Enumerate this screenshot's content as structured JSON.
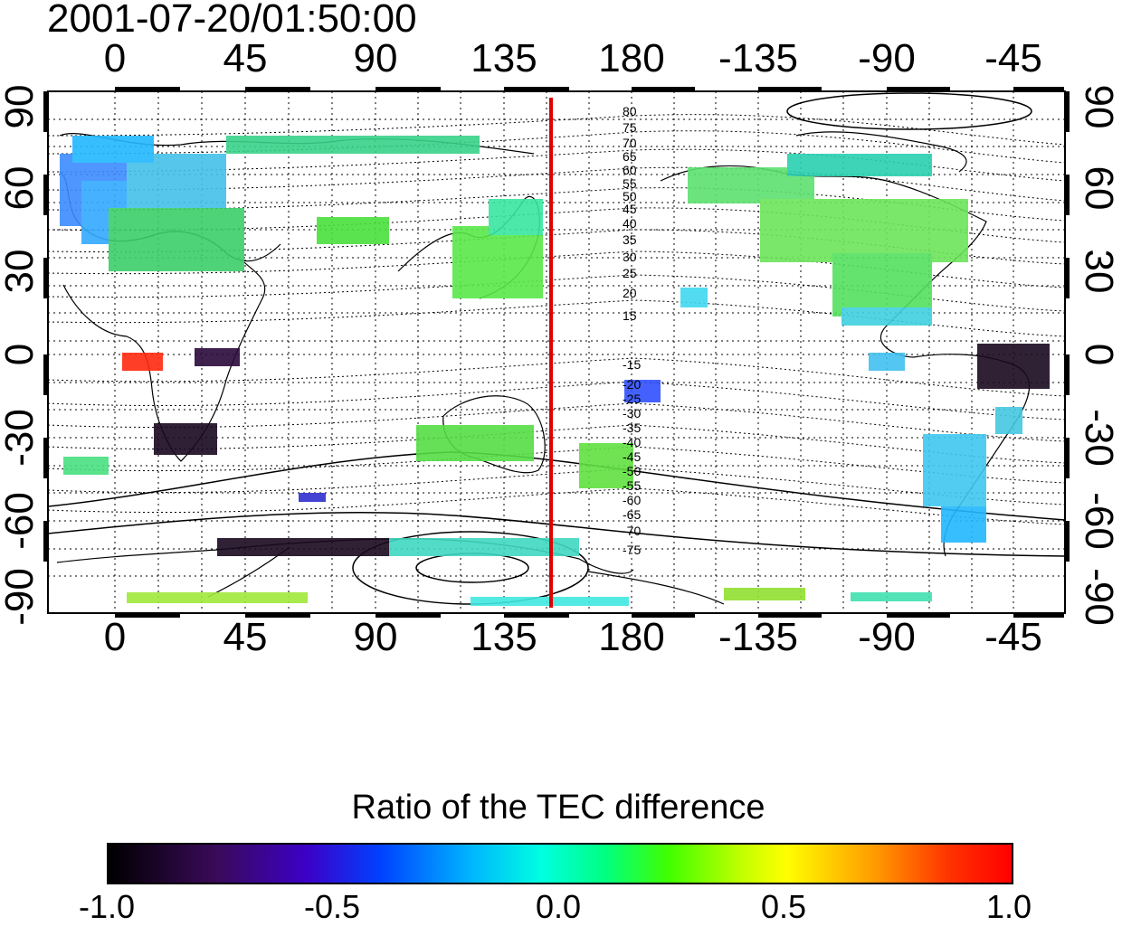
{
  "title": "2001-07-20/01:50:00",
  "x_ticks_top": [
    "0",
    "45",
    "90",
    "135",
    "180",
    "-135",
    "-90",
    "-45"
  ],
  "x_ticks_bottom": [
    "0",
    "45",
    "90",
    "135",
    "180",
    "-135",
    "-90",
    "-45"
  ],
  "y_ticks_left": [
    "90",
    "60",
    "30",
    "0",
    "-30",
    "-60",
    "-90"
  ],
  "y_ticks_right": [
    "90",
    "60",
    "30",
    "0",
    "-30",
    "-60",
    "-90"
  ],
  "contour_labels_north": [
    "80",
    "75",
    "70",
    "65",
    "60",
    "55",
    "50",
    "45",
    "40",
    "35",
    "30",
    "25",
    "20",
    "15"
  ],
  "contour_labels_south": [
    "-15",
    "-20",
    "-25",
    "-30",
    "-35",
    "-40",
    "-45",
    "-50",
    "-55",
    "-60",
    "-65",
    "-70",
    "-75"
  ],
  "colorbar": {
    "title": "Ratio of the TEC difference",
    "ticks": [
      "-1.0",
      "-0.5",
      "0.0",
      "0.5",
      "1.0"
    ],
    "range": [
      -1.0,
      1.0
    ]
  },
  "colors": {
    "highlight_line": "#e00000",
    "gridlines": "#000000"
  }
}
